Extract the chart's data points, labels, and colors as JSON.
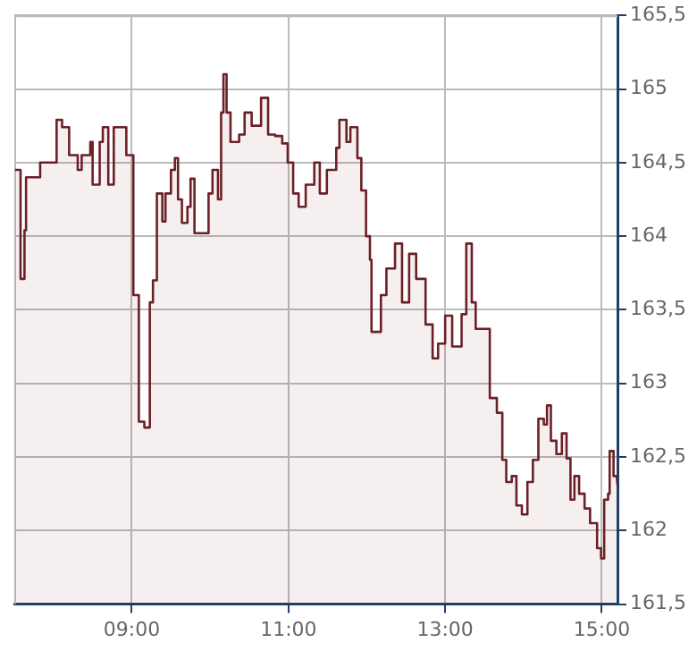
{
  "chart_data": {
    "type": "area",
    "x": [
      7.51,
      7.58,
      7.58,
      7.63,
      7.63,
      7.65,
      7.65,
      7.83,
      7.83,
      8.04,
      8.04,
      8.11,
      8.11,
      8.2,
      8.2,
      8.31,
      8.31,
      8.36,
      8.36,
      8.47,
      8.47,
      8.5,
      8.5,
      8.59,
      8.59,
      8.63,
      8.63,
      8.7,
      8.7,
      8.77,
      8.77,
      8.93,
      8.93,
      9.02,
      9.02,
      9.09,
      9.09,
      9.16,
      9.16,
      9.23,
      9.23,
      9.27,
      9.27,
      9.32,
      9.32,
      9.39,
      9.39,
      9.43,
      9.43,
      9.5,
      9.5,
      9.55,
      9.55,
      9.59,
      9.59,
      9.64,
      9.64,
      9.71,
      9.71,
      9.75,
      9.75,
      9.8,
      9.8,
      9.89,
      9.89,
      9.98,
      9.98,
      10.03,
      10.03,
      10.1,
      10.1,
      10.14,
      10.14,
      10.17,
      10.17,
      10.21,
      10.21,
      10.26,
      10.26,
      10.37,
      10.37,
      10.44,
      10.44,
      10.53,
      10.53,
      10.65,
      10.65,
      10.74,
      10.74,
      10.83,
      10.83,
      10.92,
      10.92,
      10.99,
      10.99,
      11.06,
      11.06,
      11.13,
      11.13,
      11.22,
      11.22,
      11.33,
      11.33,
      11.4,
      11.4,
      11.49,
      11.49,
      11.61,
      11.61,
      11.65,
      11.65,
      11.74,
      11.74,
      11.79,
      11.79,
      11.88,
      11.88,
      11.93,
      11.93,
      11.99,
      11.99,
      12.04,
      12.04,
      12.06,
      12.06,
      12.18,
      12.18,
      12.25,
      12.25,
      12.36,
      12.36,
      12.45,
      12.45,
      12.54,
      12.54,
      12.63,
      12.63,
      12.75,
      12.75,
      12.84,
      12.84,
      12.91,
      12.91,
      13.0,
      13.0,
      13.09,
      13.09,
      13.21,
      13.21,
      13.27,
      13.27,
      13.34,
      13.34,
      13.39,
      13.39,
      13.57,
      13.57,
      13.66,
      13.66,
      13.73,
      13.73,
      13.78,
      13.78,
      13.85,
      13.85,
      13.91,
      13.91,
      13.98,
      13.98,
      14.05,
      14.05,
      14.12,
      14.12,
      14.19,
      14.19,
      14.26,
      14.26,
      14.3,
      14.3,
      14.35,
      14.35,
      14.42,
      14.42,
      14.49,
      14.49,
      14.55,
      14.55,
      14.6,
      14.6,
      14.65,
      14.65,
      14.71,
      14.71,
      14.78,
      14.78,
      14.85,
      14.85,
      14.94,
      14.94,
      14.99,
      14.99,
      15.03,
      15.03,
      15.08,
      15.08,
      15.1,
      15.1,
      15.15,
      15.15,
      15.19,
      15.2
    ],
    "series": [
      {
        "color": "#6b2026",
        "values": [
          164.45,
          164.45,
          163.71,
          163.71,
          164.04,
          164.04,
          164.4,
          164.4,
          164.5,
          164.5,
          164.79,
          164.79,
          164.74,
          164.74,
          164.55,
          164.55,
          164.45,
          164.45,
          164.55,
          164.55,
          164.64,
          164.64,
          164.35,
          164.35,
          164.64,
          164.64,
          164.74,
          164.74,
          164.35,
          164.35,
          164.74,
          164.74,
          164.55,
          164.55,
          163.6,
          163.6,
          162.74,
          162.74,
          162.7,
          162.7,
          163.55,
          163.55,
          163.7,
          163.7,
          164.29,
          164.29,
          164.1,
          164.1,
          164.29,
          164.29,
          164.45,
          164.45,
          164.53,
          164.53,
          164.25,
          164.25,
          164.09,
          164.09,
          164.2,
          164.2,
          164.39,
          164.39,
          164.02,
          164.02,
          164.02,
          164.02,
          164.29,
          164.29,
          164.45,
          164.45,
          164.25,
          164.25,
          164.84,
          164.84,
          165.1,
          165.1,
          164.84,
          164.84,
          164.64,
          164.64,
          164.69,
          164.69,
          164.84,
          164.84,
          164.75,
          164.75,
          164.94,
          164.94,
          164.69,
          164.69,
          164.68,
          164.68,
          164.63,
          164.63,
          164.5,
          164.5,
          164.29,
          164.29,
          164.2,
          164.2,
          164.35,
          164.35,
          164.5,
          164.5,
          164.29,
          164.29,
          164.45,
          164.45,
          164.6,
          164.6,
          164.79,
          164.79,
          164.64,
          164.64,
          164.74,
          164.74,
          164.53,
          164.53,
          164.31,
          164.31,
          164.0,
          164.0,
          163.84,
          163.84,
          163.35,
          163.35,
          163.6,
          163.6,
          163.78,
          163.78,
          163.95,
          163.95,
          163.55,
          163.55,
          163.88,
          163.88,
          163.71,
          163.71,
          163.4,
          163.4,
          163.17,
          163.17,
          163.27,
          163.27,
          163.46,
          163.46,
          163.25,
          163.25,
          163.47,
          163.47,
          163.95,
          163.95,
          163.55,
          163.55,
          163.37,
          163.37,
          162.9,
          162.9,
          162.8,
          162.8,
          162.48,
          162.48,
          162.33,
          162.33,
          162.37,
          162.37,
          162.17,
          162.17,
          162.11,
          162.11,
          162.33,
          162.33,
          162.48,
          162.48,
          162.76,
          162.76,
          162.72,
          162.72,
          162.85,
          162.85,
          162.61,
          162.61,
          162.52,
          162.52,
          162.66,
          162.66,
          162.49,
          162.49,
          162.21,
          162.21,
          162.37,
          162.37,
          162.25,
          162.25,
          162.15,
          162.15,
          162.05,
          162.05,
          161.88,
          161.88,
          161.81,
          161.81,
          162.21,
          162.21,
          162.25,
          162.25,
          162.54,
          162.54,
          162.37,
          162.37,
          162.31
        ]
      }
    ],
    "xlim": [
      7.5,
      15.2
    ],
    "xticks": [
      {
        "value": 9,
        "label": "09:00"
      },
      {
        "value": 11,
        "label": "11:00"
      },
      {
        "value": 13,
        "label": "13:00"
      },
      {
        "value": 15,
        "label": "15:00"
      }
    ],
    "ylim": [
      161.5,
      165.5
    ],
    "yticks": [
      {
        "value": 161.5,
        "label": "161,5"
      },
      {
        "value": 162,
        "label": "162"
      },
      {
        "value": 162.5,
        "label": "162,5"
      },
      {
        "value": 163,
        "label": "163"
      },
      {
        "value": 163.5,
        "label": "163,5"
      },
      {
        "value": 164,
        "label": "164"
      },
      {
        "value": 164.5,
        "label": "164,5"
      },
      {
        "value": 165,
        "label": "165"
      },
      {
        "value": 165.5,
        "label": "165,5"
      }
    ],
    "grid": true,
    "legend": false,
    "marker": "none",
    "line_style": "solid"
  }
}
